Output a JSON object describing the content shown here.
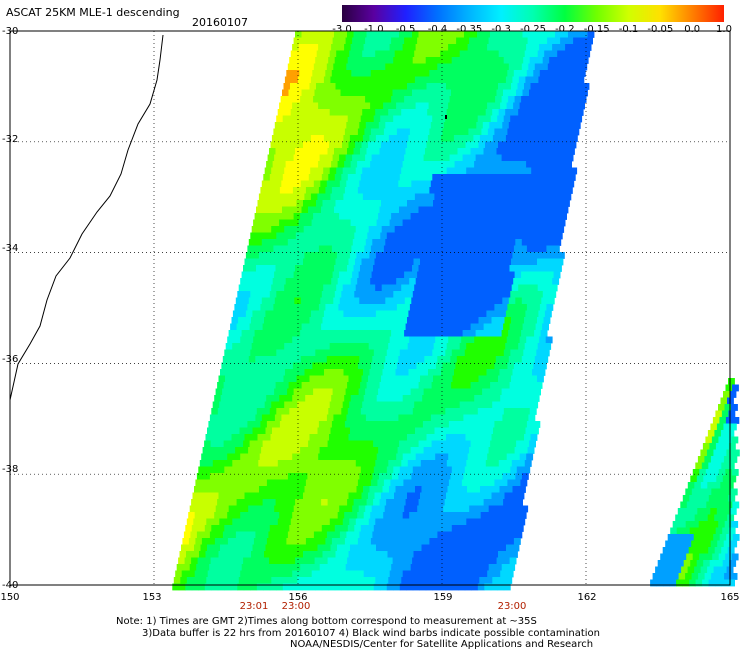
{
  "header": {
    "title": "ASCAT 25KM MLE-1 descending",
    "date": "20160107"
  },
  "colorbar": {
    "labels": [
      "-3.0",
      "-1.0",
      "-0.5",
      "-0.4",
      "-0.35",
      "-0.3",
      "-0.25",
      "-0.2",
      "-0.15",
      "-0.1",
      "-0.05",
      "0.0",
      "1.0"
    ],
    "colors": [
      "#2a0040",
      "#5a00a0",
      "#2020ff",
      "#0070ff",
      "#00b4ff",
      "#00f0ff",
      "#00ffb0",
      "#00ff40",
      "#70ff00",
      "#d0ff00",
      "#ffe000",
      "#ff8000",
      "#ff2000"
    ]
  },
  "map": {
    "lat_labels": [
      "-30",
      "-32",
      "-34",
      "-36",
      "-38",
      "-40"
    ],
    "lon_labels": [
      "150",
      "153",
      "156",
      "159",
      "162",
      "165"
    ],
    "time_labels": [
      "23:01",
      "23:00",
      "23:00"
    ],
    "lat_range": [
      -40,
      -30
    ],
    "lon_range": [
      150,
      165
    ],
    "grid": true
  },
  "notes": {
    "line1": "Note: 1) Times are GMT 2)Times along bottom correspond to measurement at ~35S",
    "line2": "3)Data buffer is 22 hrs from 20160107 4) Black wind barbs indicate possible contamination",
    "line3": "NOAA/NESDIS/Center for Satellite Applications and Research"
  }
}
